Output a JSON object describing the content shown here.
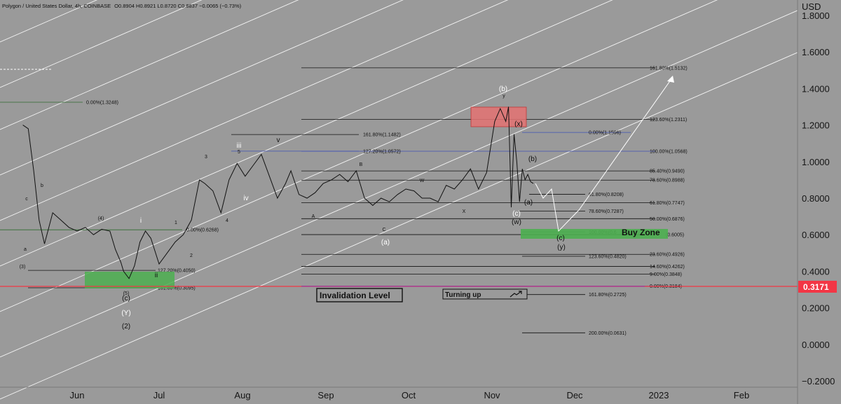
{
  "header": {
    "symbol": "Polygon / United States Dollar, 4h, COINBASE",
    "ohlc": "O0.8904 H0.8921 L0.8720 C0.8837 −0.0065 (−0.73%)"
  },
  "price_axis": {
    "currency": "USD",
    "ticks": [
      "1.8000",
      "1.6000",
      "1.4000",
      "1.2000",
      "1.0000",
      "0.8000",
      "0.6000",
      "0.4000",
      "0.2000",
      "0.0000",
      "−0.2000"
    ],
    "current_price": "0.3171",
    "current_price_color": "#f23645"
  },
  "time_axis": {
    "labels": [
      "Jun",
      "Jul",
      "Aug",
      "Sep",
      "Oct",
      "Nov",
      "Dec",
      "2023",
      "Feb"
    ]
  },
  "annotations": {
    "invalidation_label": "Invalidation Level",
    "turning_up_label": "Turning up",
    "buy_zone_label": "Buy Zone"
  },
  "colors": {
    "background": "#9a9a9a",
    "candle": "#111111",
    "buy_zone": "#4caf50",
    "sell_zone": "#e57373",
    "invalidation_line": "#f23645",
    "blue_fib": "#3f51b5",
    "green_fib": "#2e6b2e",
    "channel": "#ffffff"
  },
  "chart_data": {
    "type": "line",
    "series": [
      {
        "x": [
          "May-12",
          "May-14",
          "May-16",
          "May-18",
          "May-20",
          "May-23",
          "May-26",
          "May-29",
          "Jun-01",
          "Jun-04",
          "Jun-07",
          "Jun-10",
          "Jun-13",
          "Jun-15",
          "Jun-17",
          "Jun-18",
          "Jun-20",
          "Jun-22",
          "Jun-24",
          "Jun-26",
          "Jun-28",
          "Jul-01",
          "Jul-04",
          "Jul-07",
          "Jul-10",
          "Jul-13",
          "Jul-16",
          "Jul-18",
          "Jul-21",
          "Jul-24",
          "Jul-27",
          "Jul-30",
          "Aug-02",
          "Aug-05",
          "Aug-08",
          "Aug-11",
          "Aug-14",
          "Aug-17",
          "Aug-19",
          "Aug-22",
          "Aug-25",
          "Aug-28",
          "Aug-31",
          "Sep-03",
          "Sep-06",
          "Sep-09",
          "Sep-12",
          "Sep-15",
          "Sep-18",
          "Sep-21",
          "Sep-24",
          "Sep-27",
          "Sep-30",
          "Oct-03",
          "Oct-06",
          "Oct-09",
          "Oct-12",
          "Oct-15",
          "Oct-18",
          "Oct-21",
          "Oct-24",
          "Oct-27",
          "Oct-30",
          "Nov-02",
          "Nov-04",
          "Nov-06",
          "Nov-07",
          "Nov-08",
          "Nov-09",
          "Nov-10",
          "Nov-11",
          "Nov-12",
          "Nov-13",
          "Nov-14",
          "Nov-15",
          "Nov-16"
        ],
        "values": [
          1.2,
          1.18,
          0.95,
          0.68,
          0.55,
          0.72,
          0.68,
          0.64,
          0.62,
          0.64,
          0.6,
          0.63,
          0.62,
          0.52,
          0.45,
          0.4,
          0.36,
          0.43,
          0.56,
          0.62,
          0.58,
          0.44,
          0.5,
          0.56,
          0.6,
          0.68,
          0.9,
          0.88,
          0.84,
          0.72,
          0.9,
          0.99,
          0.92,
          0.98,
          1.04,
          0.92,
          0.8,
          0.88,
          0.95,
          0.82,
          0.8,
          0.83,
          0.88,
          0.9,
          0.93,
          0.89,
          0.95,
          0.8,
          0.76,
          0.8,
          0.78,
          0.82,
          0.85,
          0.84,
          0.8,
          0.8,
          0.78,
          0.87,
          0.85,
          0.9,
          0.96,
          0.85,
          0.94,
          1.22,
          1.29,
          1.22,
          1.3,
          0.75,
          1.15,
          1.0,
          0.78,
          0.96,
          0.9,
          0.93,
          0.89,
          0.88
        ]
      }
    ],
    "ylim": [
      -0.2,
      1.8
    ],
    "xlim": [
      "May-11",
      "Feb-20"
    ],
    "grid": false,
    "fib_levels": [
      {
        "label": "161.80%(1.5132)",
        "value": 1.5132
      },
      {
        "label": "123.60%(1.2311)",
        "value": 1.2311
      },
      {
        "label": "0.00%(1.1596)",
        "value": 1.1596
      },
      {
        "label": "100.00%(1.0568)",
        "value": 1.0568
      },
      {
        "label": "85.40%(0.9490)",
        "value": 0.949
      },
      {
        "label": "78.60%(0.8988)",
        "value": 0.8988
      },
      {
        "label": "61.80%(0.8208)",
        "value": 0.8208
      },
      {
        "label": "61.80%(0.7747)",
        "value": 0.7747
      },
      {
        "label": "78.60%(0.7287)",
        "value": 0.7287
      },
      {
        "label": "50.00%(0.6876)",
        "value": 0.6876
      },
      {
        "label": "100.00%(0.6",
        "value": 0.615
      },
      {
        "label": "(0.6005)",
        "value": 0.6005
      },
      {
        "label": "23.60%(0.4926)",
        "value": 0.4926
      },
      {
        "label": "123.60%(0.4820)",
        "value": 0.482
      },
      {
        "label": "14.60%(0.4262)",
        "value": 0.4262
      },
      {
        "label": "9.00%(0.3848)",
        "value": 0.3848
      },
      {
        "label": "0.00%(0.3184)",
        "value": 0.3184
      },
      {
        "label": "161.80%(0.2725)",
        "value": 0.2725
      },
      {
        "label": "200.00%(0.0631)",
        "value": 0.0631
      },
      {
        "label": "0.00%(1.3248)",
        "value": 1.3248
      },
      {
        "label": "161.80%(1.1482)",
        "value": 1.1482
      },
      {
        "label": "127.20%(1.0572)",
        "value": 1.0572
      },
      {
        "label": "0.00%(0.6268)",
        "value": 0.6268
      },
      {
        "label": "127.20%(0.4050)",
        "value": 0.405
      },
      {
        "label": "161.80%(0.3095)",
        "value": 0.3095
      }
    ],
    "wave_labels": [
      "(b)",
      "y",
      "(x)",
      "(b)",
      "(a)",
      "(c)",
      "(w)",
      "(c)",
      "(y)",
      "(a)",
      "iii",
      "v",
      "iv",
      "3",
      "5",
      "4",
      "i",
      "ii",
      "1",
      "2",
      "B",
      "A",
      "C",
      "W",
      "X",
      "c",
      "a",
      "b",
      "(3)",
      "(4)",
      "(5)",
      "(c)",
      "(Y)",
      "(2)"
    ]
  }
}
